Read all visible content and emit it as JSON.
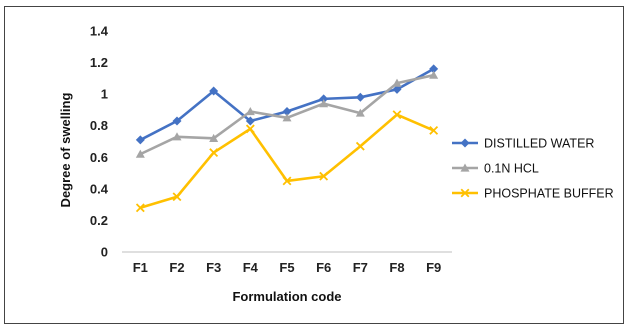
{
  "chart_data": {
    "type": "line",
    "title": "",
    "xlabel": "Formulation code",
    "ylabel": "Degree of swelling",
    "categories": [
      "F1",
      "F2",
      "F3",
      "F4",
      "F5",
      "F6",
      "F7",
      "F8",
      "F9"
    ],
    "ylim": [
      0,
      1.4
    ],
    "yticks": [
      "0",
      "0.2",
      "0.4",
      "0.6",
      "0.8",
      "1",
      "1.2",
      "1.4"
    ],
    "grid": false,
    "legend_position": "right",
    "series": [
      {
        "name": "DISTILLED WATER",
        "color": "#4472c4",
        "marker": "diamond",
        "values": [
          0.71,
          0.83,
          1.02,
          0.83,
          0.89,
          0.97,
          0.98,
          1.03,
          1.16
        ]
      },
      {
        "name": "0.1N HCL",
        "color": "#a5a5a5",
        "marker": "triangle",
        "values": [
          0.62,
          0.73,
          0.72,
          0.89,
          0.85,
          0.94,
          0.88,
          1.07,
          1.12
        ]
      },
      {
        "name": "PHOSPHATE BUFFER",
        "color": "#ffc000",
        "marker": "x",
        "values": [
          0.28,
          0.35,
          0.63,
          0.78,
          0.45,
          0.48,
          0.67,
          0.87,
          0.77
        ]
      }
    ]
  }
}
